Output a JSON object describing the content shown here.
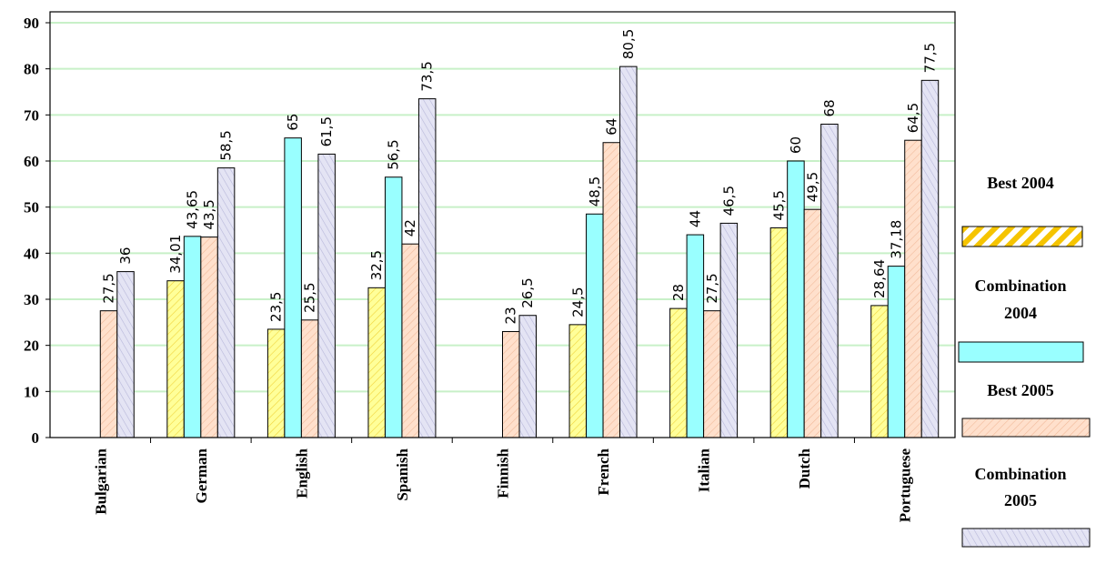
{
  "chart_data": {
    "type": "bar",
    "title": "",
    "xlabel": "",
    "ylabel": "",
    "ylim": [
      0,
      90
    ],
    "yticks": [
      0,
      10,
      20,
      30,
      40,
      50,
      60,
      70,
      80,
      90
    ],
    "grid": true,
    "legend_position": "right",
    "categories": [
      "Bulgarian",
      "German",
      "English",
      "Spanish",
      "Finnish",
      "French",
      "Italian",
      "Dutch",
      "Portuguese"
    ],
    "series": [
      {
        "name": "Best 2004",
        "color": "#ffff99",
        "pattern_color": "#e6b800",
        "values": [
          null,
          34.01,
          23.5,
          32.5,
          null,
          24.5,
          28,
          45.5,
          28.64
        ],
        "labels": [
          "",
          "34,01",
          "23,5",
          "32,5",
          "",
          "24,5",
          "28",
          "45,5",
          "28,64"
        ]
      },
      {
        "name": "Combination 2004",
        "color": "#99ffff",
        "pattern_color": "#00cccc",
        "values": [
          null,
          43.65,
          65,
          56.5,
          null,
          48.5,
          44,
          60,
          37.18
        ],
        "labels": [
          "",
          "43,65",
          "65",
          "56,5",
          "",
          "48,5",
          "44",
          "60",
          "37,18"
        ]
      },
      {
        "name": "Best 2005",
        "color": "#ffe0cc",
        "pattern_color": "#e8a07a",
        "values": [
          27.5,
          43.5,
          25.5,
          42,
          23,
          64,
          27.5,
          49.5,
          64.5
        ],
        "labels": [
          "27,5",
          "43,5",
          "25,5",
          "42",
          "23",
          "64",
          "27,5",
          "49,5",
          "64,5"
        ]
      },
      {
        "name": "Combination 2005",
        "color": "#e4e4f4",
        "pattern_color": "#9a9ac8",
        "values": [
          36,
          58.5,
          61.5,
          73.5,
          26.5,
          80.5,
          46.5,
          68,
          77.5
        ],
        "labels": [
          "36",
          "58,5",
          "61,5",
          "73,5",
          "26,5",
          "80,5",
          "46,5",
          "68",
          "77,5"
        ]
      }
    ]
  },
  "legend": {
    "items": [
      "Best 2004",
      "Combination 2004",
      "Best 2005",
      "Combination 2005"
    ]
  }
}
